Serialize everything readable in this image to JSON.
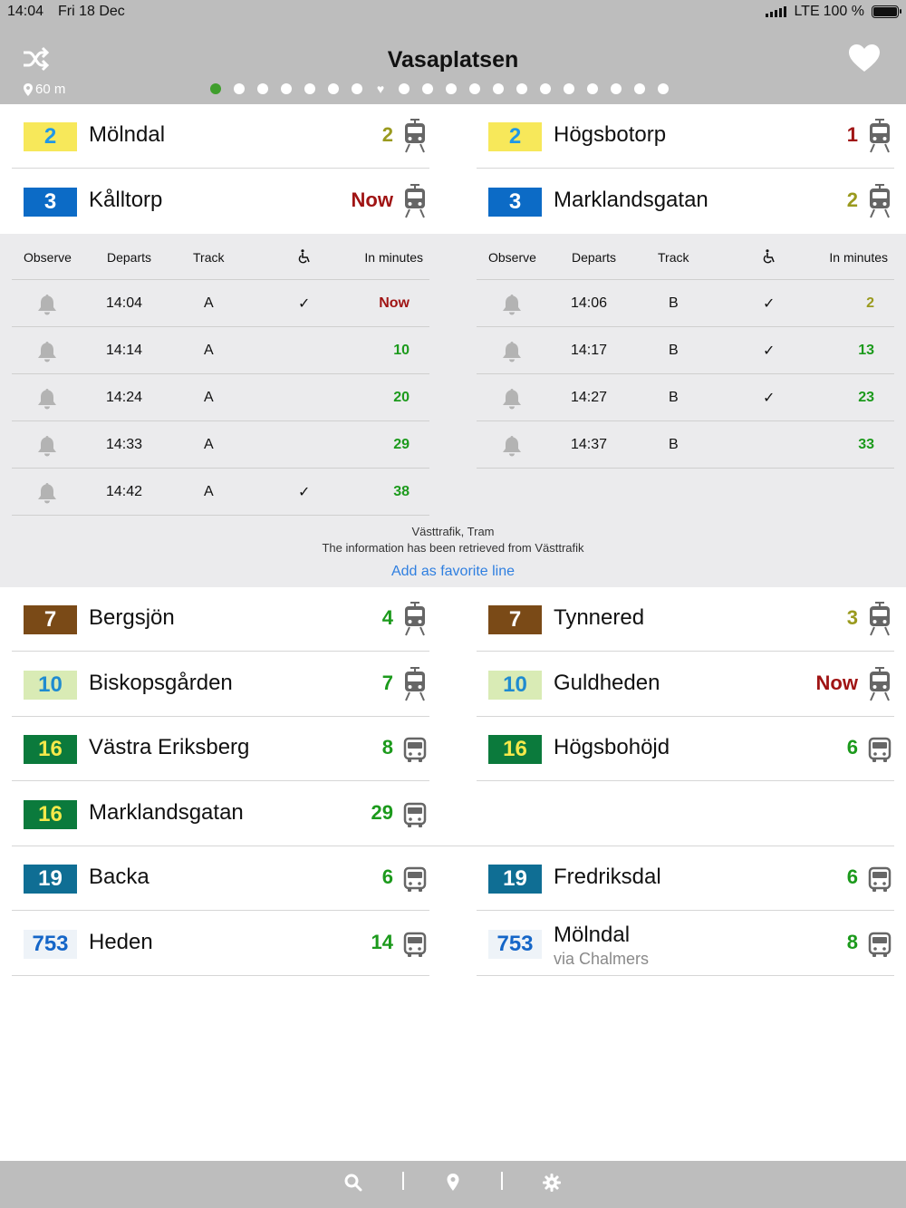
{
  "status_bar": {
    "time": "14:04",
    "date": "Fri 18 Dec",
    "network": "LTE",
    "battery": "100 %",
    "battery_level": 1.0
  },
  "header": {
    "title": "Vasaplatsen",
    "distance": "60 m",
    "shuffle_icon": "shuffle-icon",
    "favorite_icon": "heart-icon",
    "page_dots": {
      "total": 20,
      "active_index": 0,
      "heart_index": 7
    }
  },
  "colors": {
    "header_bg": "#bdbdbd",
    "panel_bg": "#ebebed",
    "green": "#1c9a1c",
    "olive": "#9a9a1e",
    "red": "#a01414",
    "link": "#2f7fe0",
    "vehicle_icon": "#666666"
  },
  "top_lines": {
    "left": [
      {
        "line": "2",
        "dest": "Mölndal",
        "minutes": "2",
        "min_color": "olive",
        "badge_bg": "#f7e85a",
        "badge_fg": "#1f97e8",
        "vehicle": "tram"
      },
      {
        "line": "3",
        "dest": "Kålltorp",
        "minutes": "Now",
        "min_color": "red",
        "badge_bg": "#0c6bc6",
        "badge_fg": "#ffffff",
        "vehicle": "tram"
      }
    ],
    "right": [
      {
        "line": "2",
        "dest": "Högsbotorp",
        "minutes": "1",
        "min_color": "red",
        "badge_bg": "#f7e85a",
        "badge_fg": "#1f97e8",
        "vehicle": "tram"
      },
      {
        "line": "3",
        "dest": "Marklandsgatan",
        "minutes": "2",
        "min_color": "olive",
        "badge_bg": "#0c6bc6",
        "badge_fg": "#ffffff",
        "vehicle": "tram"
      }
    ]
  },
  "departures": {
    "headers": {
      "observe": "Observe",
      "departs": "Departs",
      "track": "Track",
      "accessible_icon": "wheelchair-icon",
      "in_minutes": "In minutes"
    },
    "left": [
      {
        "departs": "14:04",
        "track": "A",
        "accessible": "✓",
        "in_minutes": "Now",
        "color": "red"
      },
      {
        "departs": "14:14",
        "track": "A",
        "accessible": "",
        "in_minutes": "10",
        "color": "green"
      },
      {
        "departs": "14:24",
        "track": "A",
        "accessible": "",
        "in_minutes": "20",
        "color": "green"
      },
      {
        "departs": "14:33",
        "track": "A",
        "accessible": "",
        "in_minutes": "29",
        "color": "green"
      },
      {
        "departs": "14:42",
        "track": "A",
        "accessible": "✓",
        "in_minutes": "38",
        "color": "green"
      }
    ],
    "right": [
      {
        "departs": "14:06",
        "track": "B",
        "accessible": "✓",
        "in_minutes": "2",
        "color": "olive"
      },
      {
        "departs": "14:17",
        "track": "B",
        "accessible": "✓",
        "in_minutes": "13",
        "color": "green"
      },
      {
        "departs": "14:27",
        "track": "B",
        "accessible": "✓",
        "in_minutes": "23",
        "color": "green"
      },
      {
        "departs": "14:37",
        "track": "B",
        "accessible": "",
        "in_minutes": "33",
        "color": "green"
      }
    ],
    "operator": "Västtrafik, Tram",
    "source_note": "The information has been retrieved from Västtrafik",
    "add_favorite": "Add as favorite line"
  },
  "bottom_lines": [
    {
      "left": {
        "line": "7",
        "dest": "Bergsjön",
        "minutes": "4",
        "min_color": "green",
        "badge_bg": "#7a4a17",
        "badge_fg": "#ffffff",
        "vehicle": "tram"
      },
      "right": {
        "line": "7",
        "dest": "Tynnered",
        "minutes": "3",
        "min_color": "olive",
        "badge_bg": "#7a4a17",
        "badge_fg": "#ffffff",
        "vehicle": "tram"
      }
    },
    {
      "left": {
        "line": "10",
        "dest": "Biskopsgården",
        "minutes": "7",
        "min_color": "green",
        "badge_bg": "#d9ebb5",
        "badge_fg": "#1f8bd0",
        "vehicle": "tram"
      },
      "right": {
        "line": "10",
        "dest": "Guldheden",
        "minutes": "Now",
        "min_color": "red",
        "badge_bg": "#d9ebb5",
        "badge_fg": "#1f8bd0",
        "vehicle": "tram"
      }
    },
    {
      "left": {
        "line": "16",
        "dest": "Västra Eriksberg",
        "minutes": "8",
        "min_color": "green",
        "badge_bg": "#0b7a3c",
        "badge_fg": "#f5e94a",
        "vehicle": "bus"
      },
      "right": {
        "line": "16",
        "dest": "Högsbohöjd",
        "minutes": "6",
        "min_color": "green",
        "badge_bg": "#0b7a3c",
        "badge_fg": "#f5e94a",
        "vehicle": "bus"
      }
    },
    {
      "left": {
        "line": "16",
        "dest": "Marklandsgatan",
        "minutes": "29",
        "min_color": "green",
        "badge_bg": "#0b7a3c",
        "badge_fg": "#f5e94a",
        "vehicle": "bus"
      },
      "right": null
    },
    {
      "left": {
        "line": "19",
        "dest": "Backa",
        "minutes": "6",
        "min_color": "green",
        "badge_bg": "#0f6e94",
        "badge_fg": "#ffffff",
        "vehicle": "bus"
      },
      "right": {
        "line": "19",
        "dest": "Fredriksdal",
        "minutes": "6",
        "min_color": "green",
        "badge_bg": "#0f6e94",
        "badge_fg": "#ffffff",
        "vehicle": "bus"
      }
    },
    {
      "left": {
        "line": "753",
        "dest": "Heden",
        "minutes": "14",
        "min_color": "green",
        "badge_bg": "#eef3f8",
        "badge_fg": "#1566c8",
        "vehicle": "bus"
      },
      "right": {
        "line": "753",
        "dest": "Mölndal",
        "via": "via Chalmers",
        "minutes": "8",
        "min_color": "green",
        "badge_bg": "#eef3f8",
        "badge_fg": "#1566c8",
        "vehicle": "bus"
      }
    }
  ],
  "tab_bar": {
    "items": [
      "search-icon",
      "location-pin-icon",
      "settings-gear-icon"
    ]
  }
}
